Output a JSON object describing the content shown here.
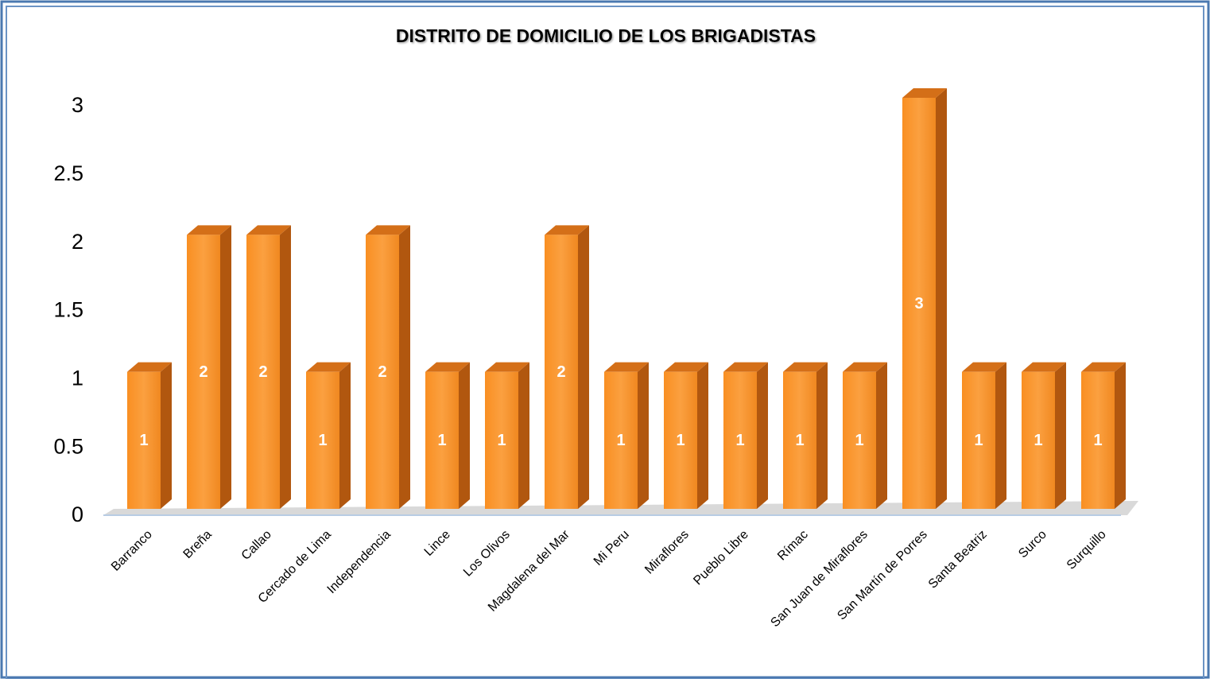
{
  "chart_data": {
    "type": "bar",
    "title": "DISTRITO DE DOMICILIO DE LOS BRIGADISTAS",
    "categories": [
      "Barranco",
      "Breña",
      "Callao",
      "Cercado de Lima",
      "Independencia",
      "Lince",
      "Los Olivos",
      "Magdalena del Mar",
      "Mi Peru",
      "Miraflores",
      "Pueblo Libre",
      "Rímac",
      "San Juan de Miraflores",
      "San Martín de Porres",
      "Santa Beatriz",
      "Surco",
      "Surquillo"
    ],
    "values": [
      1,
      2,
      2,
      1,
      2,
      1,
      1,
      2,
      1,
      1,
      1,
      1,
      1,
      3,
      1,
      1,
      1
    ],
    "color": "#f78e25",
    "ylim": [
      0,
      3
    ],
    "yticks": [
      0,
      0.5,
      1,
      1.5,
      2,
      2.5,
      3
    ],
    "grid": false
  }
}
